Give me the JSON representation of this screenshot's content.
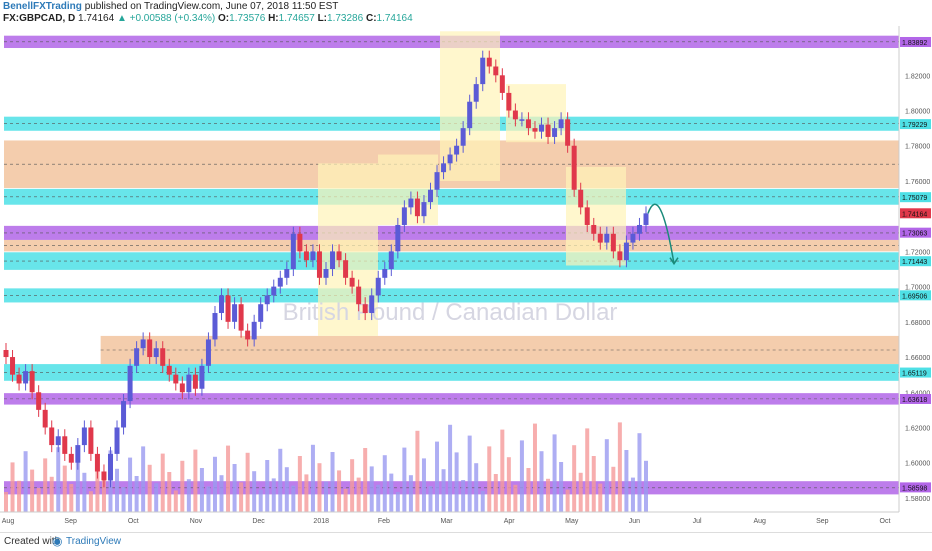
{
  "header": {
    "author": "BenellFXTrading",
    "published": "published on TradingView.com, June 07, 2018 11:50 EST",
    "symbol": "FX:GBPCAD, D",
    "last": "1.74164",
    "change": "▲ +0.00588 (+0.34%)",
    "o_label": "O:",
    "o": "1.73576",
    "h_label": "H:",
    "h": "1.74657",
    "l_label": "L:",
    "l": "1.73286",
    "c_label": "C:",
    "c": "1.74164"
  },
  "watermark": "British Pound / Canadian Dollar",
  "footer": {
    "created_with": "Created with",
    "brand": "TradingView"
  },
  "colors": {
    "up": "#5b5bd6",
    "down": "#e0384b",
    "purple_zone": "#b266e8",
    "cyan_zone": "#4ee0e6",
    "orange_zone": "#f0b88a",
    "yellow_box": "#fff3b8",
    "volume_blue": "#9a9af0",
    "volume_red": "#f59a9a",
    "forecast_arrow": "#1a8a7a"
  },
  "chart_data": {
    "type": "candlestick",
    "title": "FX:GBPCAD, D",
    "ylim": [
      1.572,
      1.848
    ],
    "y_ticks": [
      "1.82000",
      "1.80000",
      "1.78000",
      "1.76000",
      "1.72000",
      "1.70000",
      "1.68000",
      "1.66000",
      "1.64000",
      "1.62000",
      "1.60000",
      "1.58000"
    ],
    "x_ticks": [
      "Aug",
      "Sep",
      "Oct",
      "Nov",
      "Dec",
      "2018",
      "Feb",
      "Mar",
      "Apr",
      "May",
      "Jun",
      "Jul",
      "Aug",
      "Sep",
      "Oct"
    ],
    "price_badges": [
      {
        "label": "1.83892",
        "value": 1.83892,
        "color": "#b266e8"
      },
      {
        "label": "1.79229",
        "value": 1.79229,
        "color": "#4ee0e6"
      },
      {
        "label": "1.75079",
        "value": 1.75079,
        "color": "#4ee0e6"
      },
      {
        "label": "1.74164",
        "value": 1.74164,
        "color": "#e0384b"
      },
      {
        "label": "1.73063",
        "value": 1.73063,
        "color": "#b266e8"
      },
      {
        "label": "1.71443",
        "value": 1.71443,
        "color": "#4ee0e6"
      },
      {
        "label": "1.69506",
        "value": 1.69506,
        "color": "#4ee0e6"
      },
      {
        "label": "1.65119",
        "value": 1.65119,
        "color": "#4ee0e6"
      },
      {
        "label": "1.63618",
        "value": 1.63618,
        "color": "#b266e8"
      },
      {
        "label": "1.58598",
        "value": 1.58598,
        "color": "#b266e8"
      }
    ],
    "zones": [
      {
        "type": "purple",
        "from": 1.8355,
        "to": 1.8425,
        "x_start": "Aug"
      },
      {
        "type": "cyan",
        "from": 1.7885,
        "to": 1.7965,
        "x_start": "Aug"
      },
      {
        "type": "orange",
        "from": 1.756,
        "to": 1.783,
        "x_start": "Aug"
      },
      {
        "type": "cyan",
        "from": 1.7465,
        "to": 1.7555,
        "x_start": "Aug"
      },
      {
        "type": "purple",
        "from": 1.7265,
        "to": 1.7345,
        "x_start": "Aug"
      },
      {
        "type": "orange",
        "from": 1.72,
        "to": 1.7265,
        "x_start": "Aug"
      },
      {
        "type": "cyan",
        "from": 1.7095,
        "to": 1.7195,
        "x_start": "Aug"
      },
      {
        "type": "cyan",
        "from": 1.691,
        "to": 1.699,
        "x_start": "Aug"
      },
      {
        "type": "orange",
        "from": 1.656,
        "to": 1.672,
        "x_start": "Sep"
      },
      {
        "type": "cyan",
        "from": 1.6465,
        "to": 1.656,
        "x_start": "Aug"
      },
      {
        "type": "purple",
        "from": 1.633,
        "to": 1.6395,
        "x_start": "Aug"
      },
      {
        "type": "purple",
        "from": 1.582,
        "to": 1.5895,
        "x_start": "Aug"
      }
    ],
    "series": [
      {
        "x": "Aug",
        "values": [
          1.66,
          1.65,
          1.645,
          1.652,
          1.64,
          1.63,
          1.62,
          1.61,
          1.615,
          1.605,
          1.6,
          1.61,
          1.62,
          1.605
        ]
      },
      {
        "x": "Sep",
        "values": [
          1.595,
          1.59,
          1.605,
          1.62,
          1.635,
          1.655,
          1.665,
          1.67,
          1.66,
          1.665,
          1.655,
          1.65,
          1.645,
          1.64,
          1.65,
          1.642
        ]
      },
      {
        "x": "Oct",
        "values": [
          1.655,
          1.67,
          1.685,
          1.695,
          1.68,
          1.69,
          1.675,
          1.67,
          1.68,
          1.69,
          1.695,
          1.7,
          1.705,
          1.71,
          1.73,
          1.72
        ]
      },
      {
        "x": "Dec",
        "values": [
          1.715,
          1.72,
          1.705,
          1.71,
          1.72,
          1.715,
          1.705,
          1.7,
          1.69,
          1.685,
          1.695,
          1.705,
          1.71
        ]
      },
      {
        "x": "2018",
        "values": [
          1.72,
          1.735,
          1.745,
          1.75,
          1.74,
          1.748,
          1.755,
          1.765,
          1.77,
          1.775,
          1.78,
          1.79,
          1.805,
          1.815,
          1.83,
          1.825,
          1.82,
          1.81,
          1.8,
          1.795
        ]
      },
      {
        "x": "Apr",
        "values": [
          1.795,
          1.79,
          1.788,
          1.792,
          1.785,
          1.79,
          1.795,
          1.78,
          1.755,
          1.745,
          1.735,
          1.73,
          1.725,
          1.73,
          1.72,
          1.715,
          1.725,
          1.73,
          1.735,
          1.7416
        ]
      }
    ],
    "forecast": {
      "from": 1.7416,
      "peak": 1.752,
      "to": 1.713
    }
  }
}
